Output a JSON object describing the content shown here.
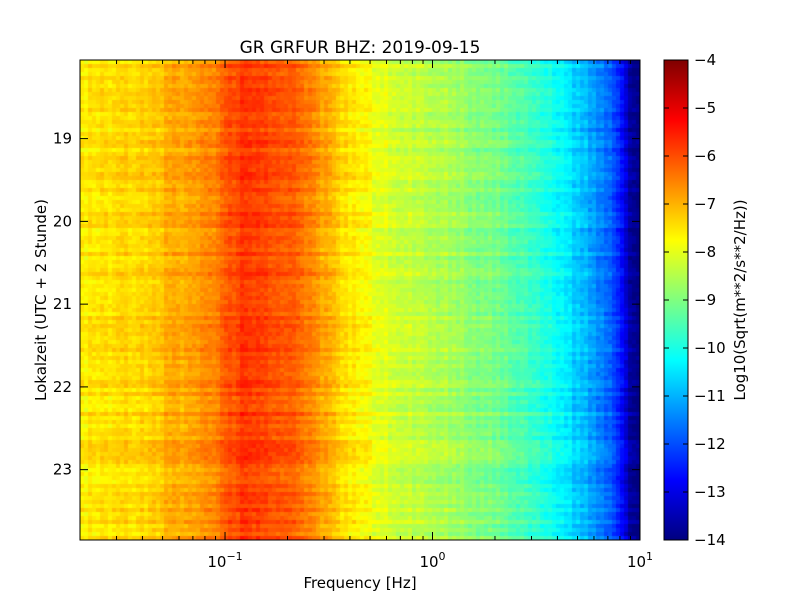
{
  "chart_data": {
    "type": "heatmap",
    "title": "GR GRFUR BHZ: 2019-09-15",
    "xlabel": "Frequency [Hz]",
    "ylabel": "Lokalzeit (UTC + 2 Stunde)",
    "x_scale": "log",
    "xlim": [
      0.02,
      10
    ],
    "x_ticks": [
      {
        "value": 0.1,
        "base": "10",
        "exp": "−1"
      },
      {
        "value": 1,
        "base": "10",
        "exp": "0"
      },
      {
        "value": 10,
        "base": "10",
        "exp": "1"
      }
    ],
    "ylim": [
      18.05,
      23.85
    ],
    "y_inverted": true,
    "y_ticks": [
      19,
      20,
      21,
      22,
      23
    ],
    "colorbar": {
      "label": "Log10(Sqrt(m**2/s**2/Hz))",
      "range": [
        -14,
        -4
      ],
      "ticks": [
        "−4",
        "−5",
        "−6",
        "−7",
        "−8",
        "−9",
        "−10",
        "−11",
        "−12",
        "−13",
        "−14"
      ],
      "colormap": "jet"
    },
    "profile": {
      "frequency_hz": [
        0.02,
        0.04,
        0.06,
        0.085,
        0.12,
        0.16,
        0.22,
        0.3,
        0.4,
        0.55,
        0.8,
        1.2,
        2.0,
        3.0,
        4.5,
        6.0,
        7.5,
        9.0,
        10.0
      ],
      "log10_amplitude": [
        -7.6,
        -7.3,
        -6.9,
        -6.6,
        -5.8,
        -5.9,
        -6.2,
        -6.9,
        -7.5,
        -8.0,
        -8.3,
        -8.6,
        -9.1,
        -9.6,
        -10.5,
        -11.2,
        -12.0,
        -13.6,
        -14.0
      ]
    }
  }
}
